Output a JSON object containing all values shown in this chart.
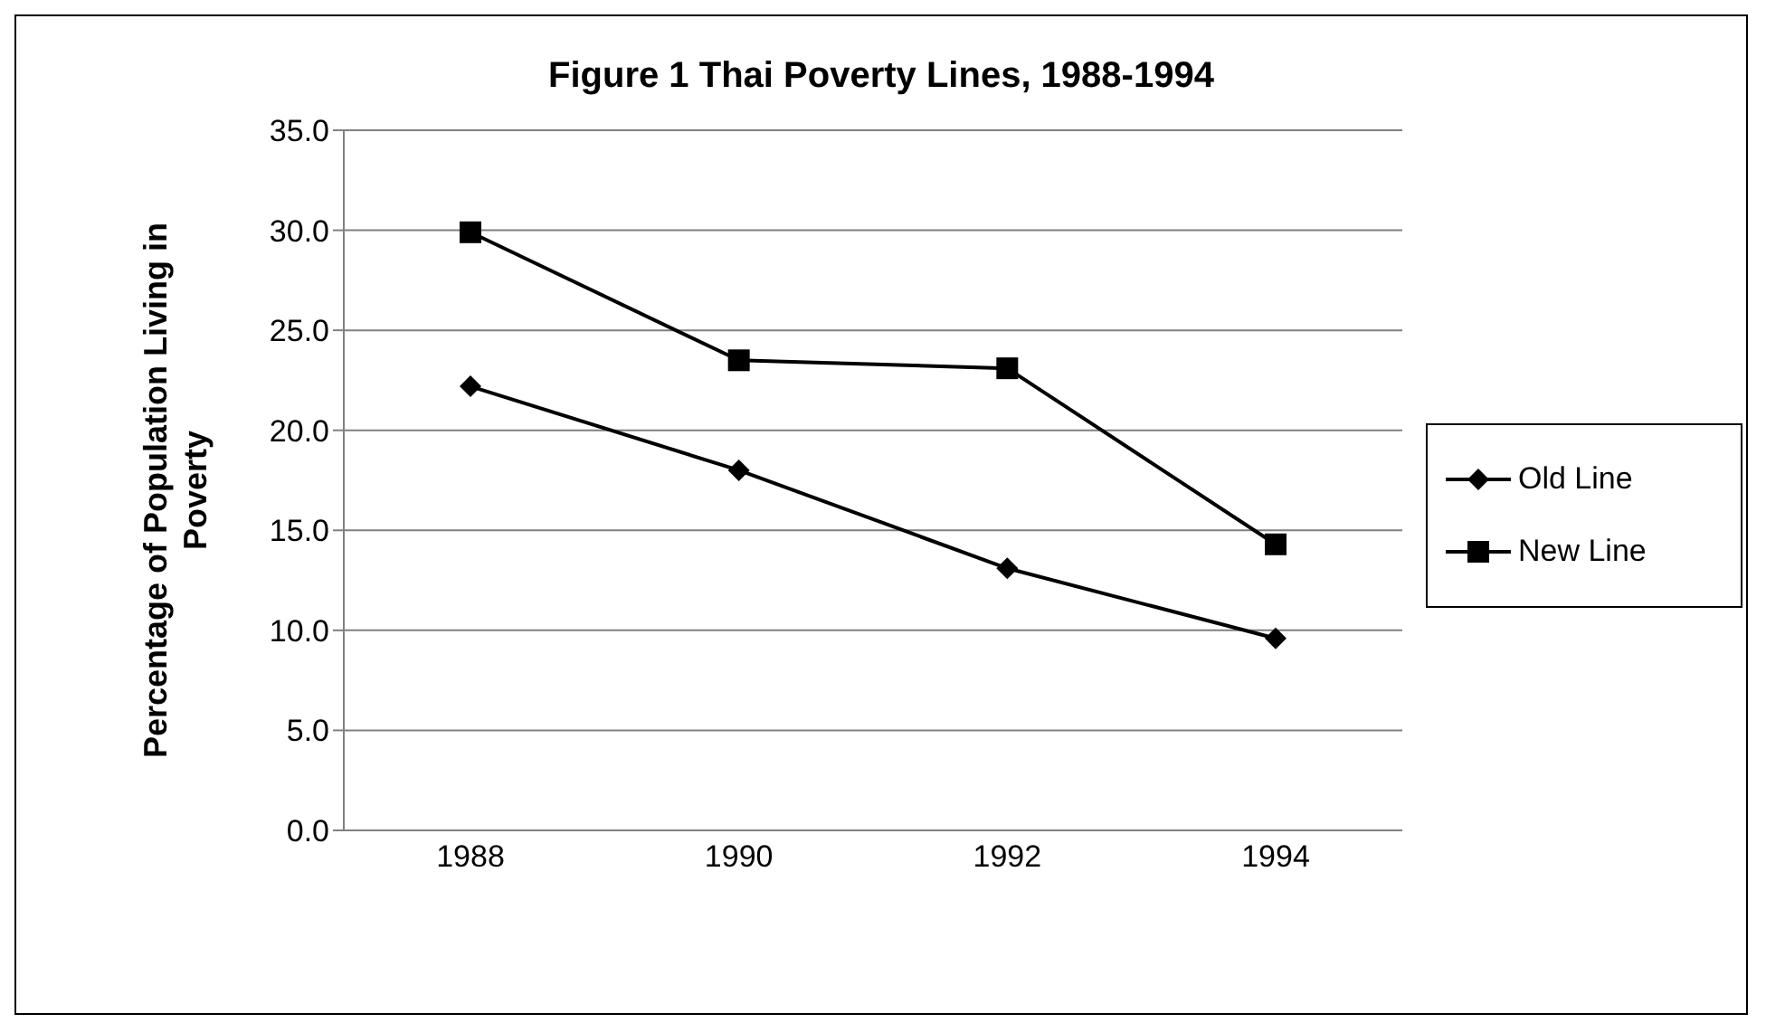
{
  "chart_data": {
    "type": "line",
    "title": "Figure 1 Thai Poverty Lines, 1988-1994",
    "ylabel": "Percentage of Population Living in Poverty",
    "categories": [
      "1988",
      "1990",
      "1992",
      "1994"
    ],
    "series": [
      {
        "name": "Old Line",
        "color": "#000000",
        "marker": "diamond",
        "values": [
          22.2,
          18.0,
          13.1,
          9.6
        ]
      },
      {
        "name": "New Line",
        "color": "#000000",
        "marker": "square",
        "values": [
          29.9,
          23.5,
          23.1,
          14.3
        ]
      }
    ],
    "ylim": [
      0,
      35
    ],
    "yticks": [
      {
        "value": 0,
        "label": "0.0"
      },
      {
        "value": 5,
        "label": "5.0"
      },
      {
        "value": 10,
        "label": "10.0"
      },
      {
        "value": 15,
        "label": "15.0"
      },
      {
        "value": 20,
        "label": "20.0"
      },
      {
        "value": 25,
        "label": "25.0"
      },
      {
        "value": 30,
        "label": "30.0"
      },
      {
        "value": 35,
        "label": "35.0"
      }
    ],
    "grid": "y",
    "legend": "right",
    "line_style": "solid"
  }
}
